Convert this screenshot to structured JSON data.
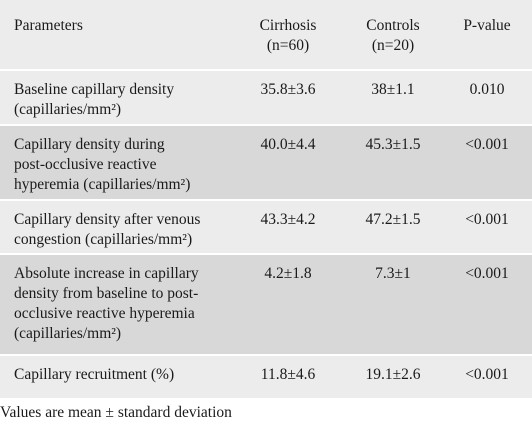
{
  "table": {
    "headers": {
      "parameters": "Parameters",
      "cirrhosis_line1": "Cirrhosis",
      "cirrhosis_line2": "(n=60)",
      "controls_line1": "Controls",
      "controls_line2": "(n=20)",
      "pvalue": "P-value"
    },
    "rows": [
      {
        "param_lines": [
          "Baseline capillary density",
          "(capillaries/mm²)"
        ],
        "cirrhosis": "35.8±3.6",
        "controls": "38±1.1",
        "pvalue": "0.010"
      },
      {
        "param_lines": [
          "Capillary density during",
          "post-occlusive reactive",
          "hyperemia (capillaries/mm²)"
        ],
        "cirrhosis": "40.0±4.4",
        "controls": "45.3±1.5",
        "pvalue": "<0.001"
      },
      {
        "param_lines": [
          "Capillary density after venous",
          "congestion (capillaries/mm²)"
        ],
        "cirrhosis": "43.3±4.2",
        "controls": "47.2±1.5",
        "pvalue": "<0.001"
      },
      {
        "param_lines": [
          "Absolute increase in capillary",
          "density from baseline to post-",
          "occlusive reactive hyperemia",
          "(capillaries/mm²)"
        ],
        "cirrhosis": "4.2±1.8",
        "controls": "7.3±1",
        "pvalue": "<0.001"
      },
      {
        "param_lines": [
          "Capillary recruitment (%)"
        ],
        "cirrhosis": "11.8±4.6",
        "controls": "19.1±2.6",
        "pvalue": "<0.001"
      }
    ]
  },
  "footnote": "Values are mean ± standard deviation"
}
